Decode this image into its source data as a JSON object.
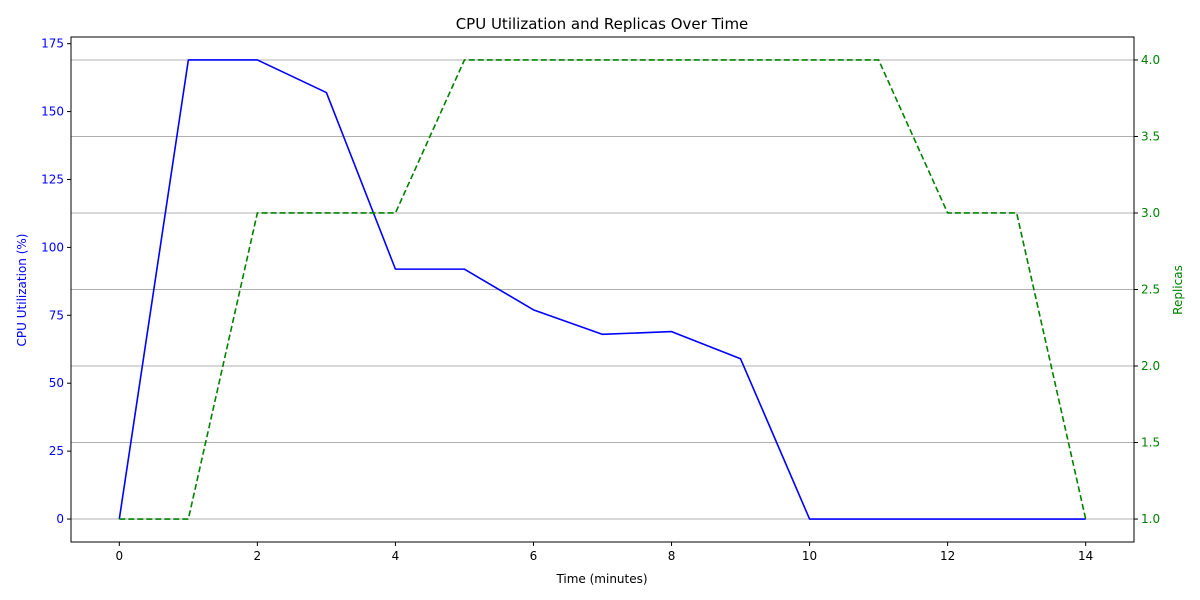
{
  "chart_data": {
    "type": "line",
    "title": "CPU Utilization and Replicas Over Time",
    "xlabel": "Time (minutes)",
    "ylabel_left": "CPU Utilization (%)",
    "ylabel_right": "Replicas",
    "x": [
      0,
      1,
      2,
      3,
      4,
      5,
      6,
      7,
      8,
      9,
      10,
      11,
      12,
      13,
      14
    ],
    "xlim": [
      -0.7,
      14.7
    ],
    "ylim_left": [
      -8.45,
      177.45
    ],
    "ylim_right": [
      0.85,
      4.15
    ],
    "x_ticks": [
      0,
      2,
      4,
      6,
      8,
      10,
      12,
      14
    ],
    "y_ticks_left": [
      0,
      25,
      50,
      75,
      100,
      125,
      150,
      175
    ],
    "y_ticks_right": [
      1.0,
      1.5,
      2.0,
      2.5,
      3.0,
      3.5,
      4.0
    ],
    "grid": "horizontal-right-axis",
    "series": [
      {
        "axis": "left",
        "color": "#0000ff",
        "style": "solid",
        "values": [
          0,
          169,
          169,
          157,
          92,
          92,
          77,
          68,
          69,
          59,
          0,
          0,
          0,
          0,
          0
        ]
      },
      {
        "axis": "right",
        "color": "#008000",
        "style": "dashed",
        "values": [
          1,
          1,
          3,
          3,
          3,
          4,
          4,
          4,
          4,
          4,
          4,
          4,
          3,
          3,
          1
        ]
      }
    ]
  }
}
